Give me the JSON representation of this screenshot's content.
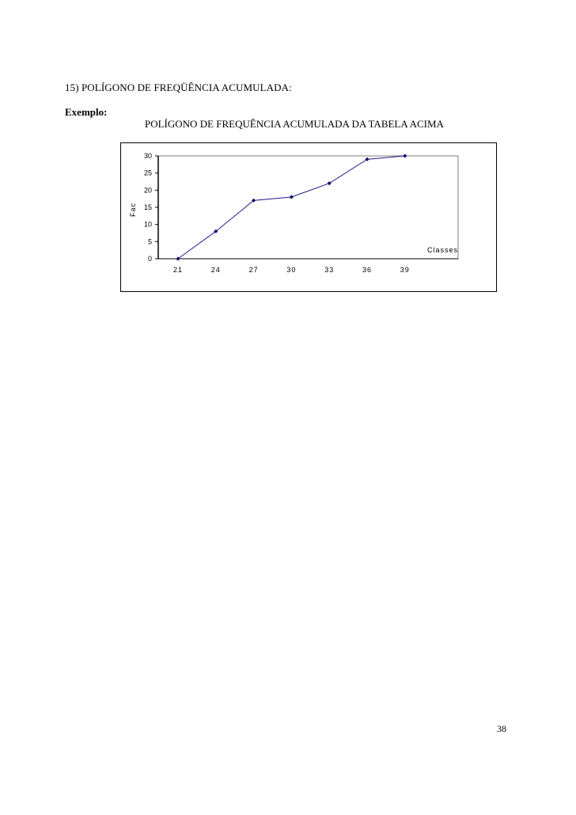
{
  "document": {
    "section_title": "15)  POLÍGONO DE FREQÜÊNCIA ACUMULADA:",
    "example_label": "Exemplo:",
    "page_number": "38"
  },
  "chart_data": {
    "type": "line",
    "title": "POLÍGONO DE FREQUÊNCIA ACUMULADA DA TABELA ACIMA",
    "xlabel": "Classes",
    "ylabel": "Fac",
    "categories": [
      "21",
      "24",
      "27",
      "30",
      "33",
      "36",
      "39"
    ],
    "series": [
      {
        "values": [
          0,
          8,
          17,
          18,
          22,
          29,
          30
        ]
      }
    ],
    "ylim": [
      0,
      30
    ],
    "yticks": [
      0,
      5,
      10,
      15,
      20,
      25,
      30
    ],
    "grid": false,
    "legend": "none",
    "colors": {
      "line": "#1f1f8a",
      "marker": "#12126e",
      "axis": "#000000",
      "plot_border": "#808080"
    }
  }
}
